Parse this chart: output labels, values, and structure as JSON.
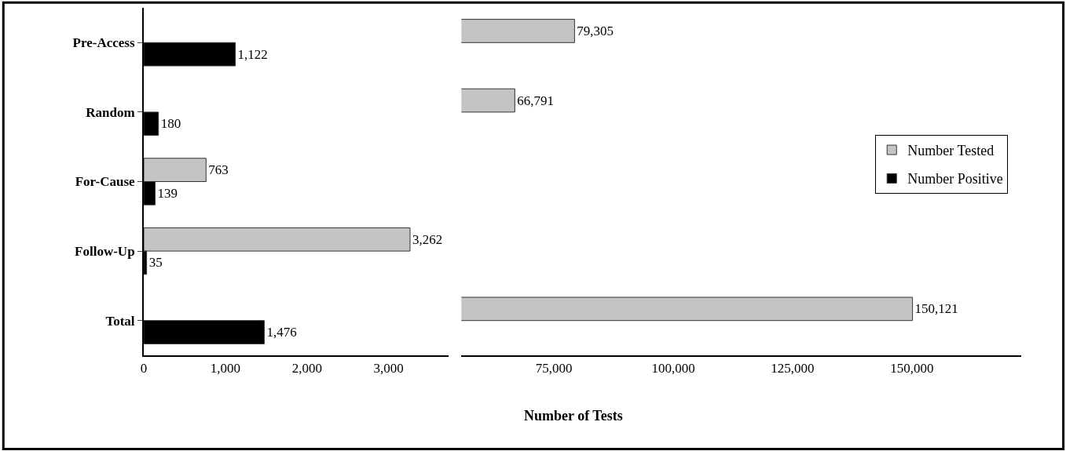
{
  "chart_data": [
    {
      "type": "bar",
      "orientation": "horizontal",
      "xlabel": "Number of Tests",
      "categories": [
        "Pre-Access",
        "Random",
        "For-Cause",
        "Follow-Up",
        "Total"
      ],
      "series": [
        {
          "name": "Number Tested",
          "color": "#c4c4c4",
          "values": [
            null,
            null,
            763,
            3262,
            null
          ],
          "value_labels": [
            null,
            null,
            "763",
            "3,262",
            null
          ]
        },
        {
          "name": "Number Positive",
          "color": "#000000",
          "values": [
            1122,
            180,
            139,
            35,
            1476
          ],
          "value_labels": [
            "1,122",
            "180",
            "139",
            "35",
            "1,476"
          ]
        }
      ],
      "xlim": [
        0,
        3730
      ],
      "xticks": [
        0,
        {
          "value": 1000,
          "label": "1,000"
        },
        {
          "value": 2000,
          "label": "2,000"
        },
        {
          "value": 3000,
          "label": "3,000"
        }
      ],
      "legend": "right"
    },
    {
      "type": "bar",
      "orientation": "horizontal",
      "categories": [
        null,
        null,
        null,
        null,
        null
      ],
      "series": [
        {
          "color": "#c4c4c4",
          "values": [
            79305,
            66791,
            null,
            null,
            150121
          ],
          "value_labels": [
            "79,305",
            "66,791",
            null,
            null,
            "150,121"
          ]
        },
        {
          "color": "#000000",
          "values": [
            null,
            null,
            null,
            null,
            null
          ]
        }
      ],
      "xlim": [
        55600,
        172900
      ],
      "xticks": [
        {
          "value": 75000,
          "label": "75,000"
        },
        {
          "value": 100000,
          "label": "100,000"
        },
        {
          "value": 125000,
          "label": "125,000"
        },
        {
          "value": 150000,
          "label": "150,000"
        }
      ]
    }
  ]
}
